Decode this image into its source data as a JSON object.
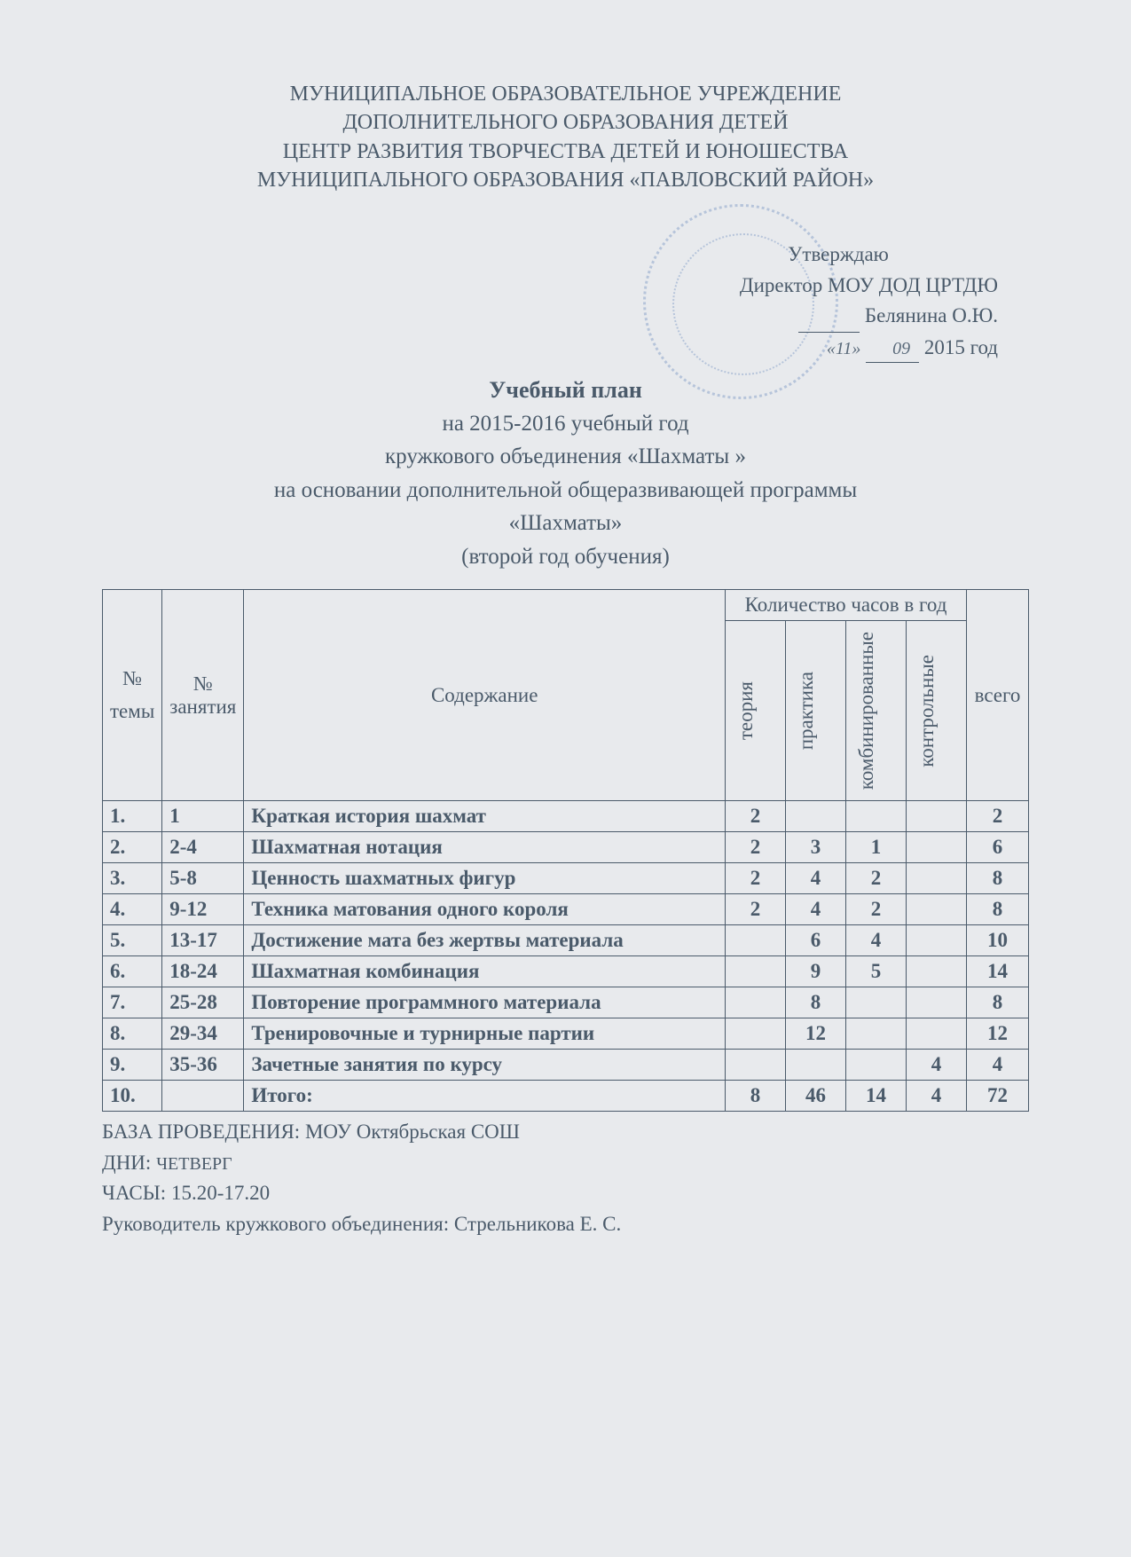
{
  "org": {
    "line1": "МУНИЦИПАЛЬНОЕ ОБРАЗОВАТЕЛЬНОЕ УЧРЕЖДЕНИЕ",
    "line2": "ДОПОЛНИТЕЛЬНОГО ОБРАЗОВАНИЯ ДЕТЕЙ",
    "line3": "ЦЕНТР РАЗВИТИЯ ТВОРЧЕСТВА ДЕТЕЙ И ЮНОШЕСТВА",
    "line4": "МУНИЦИПАЛЬНОГО ОБРАЗОВАНИЯ «ПАВЛОВСКИЙ РАЙОН»"
  },
  "approval": {
    "approve": "Утверждаю",
    "director": "Директор МОУ ДОД ЦРТДЮ",
    "name": "Белянина О.Ю.",
    "date_day": "«11»",
    "date_month": "09",
    "date_year": "2015 год"
  },
  "title": {
    "main": "Учебный план",
    "line1": "на 2015-2016 учебный год",
    "line2": "кружкового объединения   «Шахматы »",
    "line3": "на основании дополнительной общеразвивающей программы",
    "line4": "«Шахматы»",
    "line5": "(второй  год обучения)"
  },
  "table": {
    "headers": {
      "num": "№ темы",
      "lesson": "№ занятия",
      "content": "Содержание",
      "hours_group": "Количество часов в год",
      "theory": "теория",
      "practice": "практика",
      "combined": "комбинированные",
      "control": "контрольные",
      "total": "всего"
    },
    "rows": [
      {
        "n": "1.",
        "lesson": "1",
        "content": "Краткая история шахмат",
        "theory": "2",
        "practice": "",
        "combined": "",
        "control": "",
        "total": "2"
      },
      {
        "n": "2.",
        "lesson": "2-4",
        "content": "Шахматная нотация",
        "theory": "2",
        "practice": "3",
        "combined": "1",
        "control": "",
        "total": "6"
      },
      {
        "n": "3.",
        "lesson": "5-8",
        "content": "Ценность шахматных фигур",
        "theory": "2",
        "practice": "4",
        "combined": "2",
        "control": "",
        "total": "8"
      },
      {
        "n": "4.",
        "lesson": "9-12",
        "content": "Техника матования одного короля",
        "theory": "2",
        "practice": "4",
        "combined": "2",
        "control": "",
        "total": "8"
      },
      {
        "n": "5.",
        "lesson": "13-17",
        "content": "Достижение мата без жертвы материала",
        "theory": "",
        "practice": "6",
        "combined": "4",
        "control": "",
        "total": "10"
      },
      {
        "n": "6.",
        "lesson": "18-24",
        "content": "Шахматная комбинация",
        "theory": "",
        "practice": "9",
        "combined": "5",
        "control": "",
        "total": "14"
      },
      {
        "n": "7.",
        "lesson": "25-28",
        "content": "Повторение программного материала",
        "theory": "",
        "practice": "8",
        "combined": "",
        "control": "",
        "total": "8"
      },
      {
        "n": "8.",
        "lesson": "29-34",
        "content": "Тренировочные и турнирные партии",
        "theory": "",
        "practice": "12",
        "combined": "",
        "control": "",
        "total": "12"
      },
      {
        "n": "9.",
        "lesson": "35-36",
        "content": "Зачетные занятия по курсу",
        "theory": "",
        "practice": "",
        "combined": "",
        "control": "4",
        "total": "4"
      },
      {
        "n": "10.",
        "lesson": "",
        "content": "Итого:",
        "theory": "8",
        "practice": "46",
        "combined": "14",
        "control": "4",
        "total": "72"
      }
    ]
  },
  "footer": {
    "base": "БАЗА ПРОВЕДЕНИЯ: МОУ Октябрьская СОШ",
    "days_label": "ДНИ:",
    "days_value": "ЧЕТВЕРГ",
    "hours": "ЧАСЫ: 15.20-17.20",
    "leader": "Руководитель кружкового объединения: Стрельникова Е. С."
  },
  "colors": {
    "page_bg": "#e8eaed",
    "text": "#4a5a6a",
    "border": "#4a5a6a",
    "stamp": "#5a7fb8"
  }
}
